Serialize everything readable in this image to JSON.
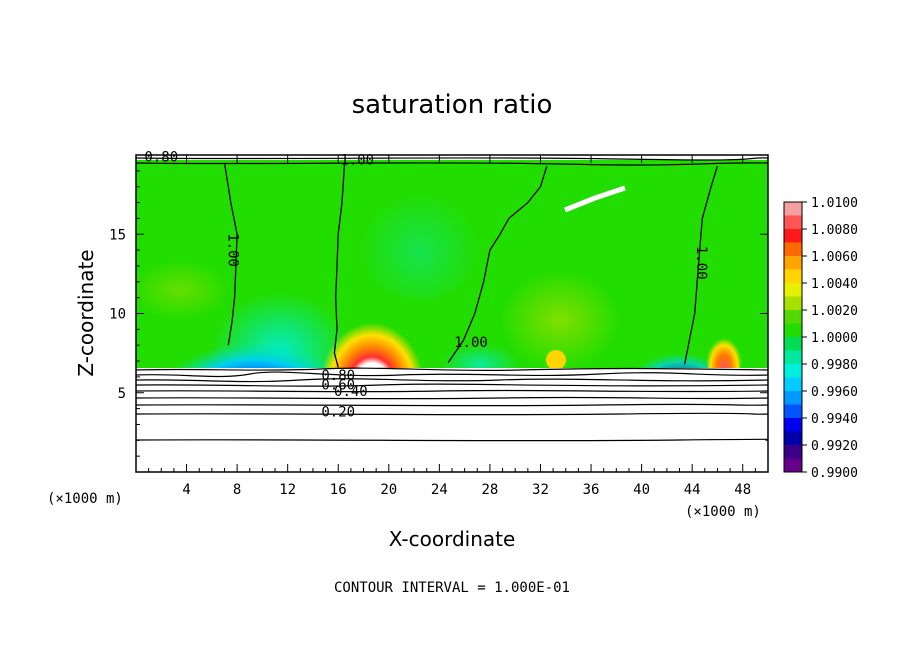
{
  "chart_data": {
    "type": "heatmap",
    "title": "saturation ratio",
    "xlabel": "X-coordinate",
    "ylabel": "Z-coordinate",
    "x_unit": "(×1000 m)",
    "y_unit": "(×1000 m)",
    "xlim": [
      0,
      50
    ],
    "ylim": [
      0,
      20
    ],
    "x_ticks": [
      4,
      8,
      12,
      16,
      20,
      24,
      28,
      32,
      36,
      40,
      44,
      48
    ],
    "y_ticks": [
      5,
      10,
      15
    ],
    "grid": false,
    "colorbar": {
      "placement": "right",
      "ticks": [
        "1.0100",
        "1.0080",
        "1.0060",
        "1.0040",
        "1.0020",
        "1.0000",
        "0.9980",
        "0.9960",
        "0.9940",
        "0.9920",
        "0.9900"
      ],
      "bins": [
        {
          "low": 1.009,
          "high": 1.01,
          "color": "#f4a0a0"
        },
        {
          "low": 1.008,
          "high": 1.009,
          "color": "#ff5555"
        },
        {
          "low": 1.007,
          "high": 1.008,
          "color": "#ff1a1a"
        },
        {
          "low": 1.006,
          "high": 1.007,
          "color": "#ff6a00"
        },
        {
          "low": 1.005,
          "high": 1.006,
          "color": "#ffa500"
        },
        {
          "low": 1.004,
          "high": 1.005,
          "color": "#ffd400"
        },
        {
          "low": 1.003,
          "high": 1.004,
          "color": "#e6f000"
        },
        {
          "low": 1.002,
          "high": 1.003,
          "color": "#a8e000"
        },
        {
          "low": 1.001,
          "high": 1.002,
          "color": "#55d800"
        },
        {
          "low": 1.0,
          "high": 1.001,
          "color": "#22dd00"
        },
        {
          "low": 0.999,
          "high": 1.0,
          "color": "#00dd55"
        },
        {
          "low": 0.998,
          "high": 0.999,
          "color": "#00e8a0"
        },
        {
          "low": 0.997,
          "high": 0.998,
          "color": "#00eedd"
        },
        {
          "low": 0.996,
          "high": 0.997,
          "color": "#00ccff"
        },
        {
          "low": 0.995,
          "high": 0.996,
          "color": "#0099ff"
        },
        {
          "low": 0.994,
          "high": 0.995,
          "color": "#0055ff"
        },
        {
          "low": 0.993,
          "high": 0.994,
          "color": "#0000ee"
        },
        {
          "low": 0.992,
          "high": 0.993,
          "color": "#0000aa"
        },
        {
          "low": 0.991,
          "high": 0.992,
          "color": "#3a0088"
        },
        {
          "low": 0.99,
          "high": 0.991,
          "color": "#66008a"
        }
      ]
    },
    "contour_interval_text": "CONTOUR INTERVAL = 1.000E-01",
    "contour_labels": [
      {
        "text": "0.80",
        "x": 2.0,
        "z": 19.6
      },
      {
        "text": "1.00",
        "x": 17.5,
        "z": 19.4
      },
      {
        "text": "1.00",
        "x": 7.3,
        "z": 14.0
      },
      {
        "text": "1.00",
        "x": 26.5,
        "z": 7.9
      },
      {
        "text": "1.00",
        "x": 44.4,
        "z": 13.2
      },
      {
        "text": "0.80",
        "x": 16.0,
        "z": 5.8
      },
      {
        "text": "0.60",
        "x": 16.0,
        "z": 5.2
      },
      {
        "text": "0.40",
        "x": 17.0,
        "z": 4.8
      },
      {
        "text": "0.20",
        "x": 16.0,
        "z": 3.5
      }
    ],
    "series": [
      {
        "contour_level": 1.0,
        "path": [
          [
            7.0,
            19.5
          ],
          [
            7.5,
            17
          ],
          [
            8.0,
            15
          ],
          [
            7.9,
            13
          ],
          [
            7.8,
            11
          ],
          [
            7.6,
            9.5
          ],
          [
            7.3,
            8
          ]
        ]
      },
      {
        "contour_level": 1.0,
        "path": [
          [
            16.5,
            19.5
          ],
          [
            16.3,
            17
          ],
          [
            16.0,
            15
          ],
          [
            15.9,
            13
          ],
          [
            15.8,
            11
          ],
          [
            15.9,
            9
          ],
          [
            15.7,
            7.5
          ],
          [
            16.0,
            6.6
          ]
        ]
      },
      {
        "contour_level": 1.0,
        "path": [
          [
            32.5,
            19.3
          ],
          [
            32.0,
            18
          ],
          [
            31.0,
            17
          ],
          [
            29.5,
            16
          ],
          [
            28.8,
            15
          ],
          [
            28.0,
            14
          ],
          [
            27.5,
            12
          ],
          [
            26.8,
            10
          ],
          [
            25.9,
            8.3
          ],
          [
            24.7,
            6.9
          ]
        ]
      },
      {
        "contour_level": 1.0,
        "path": [
          [
            46.0,
            19.3
          ],
          [
            45.5,
            18
          ],
          [
            44.8,
            16
          ],
          [
            44.6,
            14
          ],
          [
            44.4,
            12
          ],
          [
            44.2,
            10
          ],
          [
            43.7,
            8
          ],
          [
            43.4,
            6.8
          ]
        ]
      }
    ]
  }
}
